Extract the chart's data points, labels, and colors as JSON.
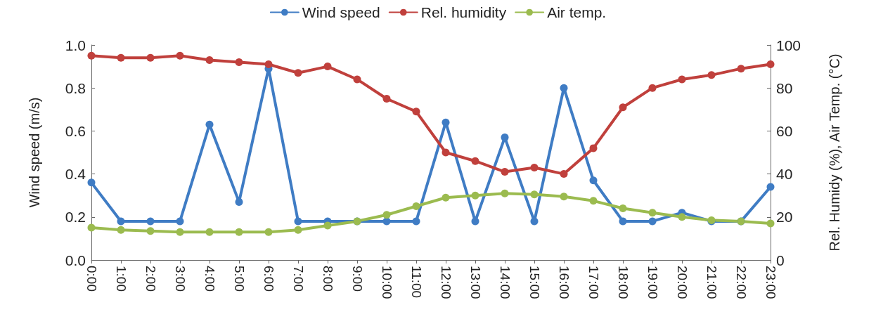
{
  "chart_data": {
    "type": "line",
    "ylabel": "Wind speed (m/s)",
    "y2label": "Rel. Humidy (%), Air Temp. (°C)",
    "categories": [
      "0:00",
      "1:00",
      "2:00",
      "3:00",
      "4:00",
      "5:00",
      "6:00",
      "7:00",
      "8:00",
      "9:00",
      "10:00",
      "11:00",
      "12:00",
      "13:00",
      "14:00",
      "15:00",
      "16:00",
      "17:00",
      "18:00",
      "19:00",
      "20:00",
      "21:00",
      "22:00",
      "23:00"
    ],
    "series": [
      {
        "name": "Wind speed",
        "color": "#3f7cc4",
        "values": [
          0.36,
          0.18,
          0.18,
          0.18,
          0.63,
          0.27,
          0.89,
          0.18,
          0.18,
          0.18,
          0.18,
          0.18,
          0.64,
          0.18,
          0.57,
          0.18,
          0.8,
          0.37,
          0.18,
          0.18,
          0.22,
          0.18,
          0.18,
          0.34
        ]
      },
      {
        "name": "Rel. humidity",
        "color": "#c0403c",
        "axis": "y2",
        "values": [
          95,
          94,
          94,
          95,
          93,
          92,
          91,
          87,
          90,
          84,
          75,
          69,
          50,
          46,
          41,
          43,
          40,
          52,
          71,
          80,
          84,
          86,
          89,
          91
        ]
      },
      {
        "name": "Air temp.",
        "color": "#9bbb4f",
        "axis": "y2",
        "values": [
          15,
          14,
          13.5,
          13,
          13,
          13,
          13,
          14,
          16,
          18,
          21,
          25,
          29,
          30,
          31,
          30.5,
          29.5,
          27.5,
          24,
          22,
          20,
          18.5,
          18,
          17
        ]
      }
    ],
    "ylim": [
      0,
      1
    ],
    "yticks": [
      {
        "value": 0,
        "label": "0.0"
      },
      {
        "value": 0.2,
        "label": "0.2"
      },
      {
        "value": 0.4,
        "label": "0.4"
      },
      {
        "value": 0.6,
        "label": "0.6"
      },
      {
        "value": 0.8,
        "label": "0.8"
      },
      {
        "value": 1,
        "label": "1.0"
      }
    ],
    "y2lim": [
      0,
      100
    ],
    "y2ticks": [
      0,
      20,
      40,
      60,
      80,
      100
    ],
    "grid": false,
    "legend": "top",
    "marker": "circle",
    "line_style": "solid"
  }
}
